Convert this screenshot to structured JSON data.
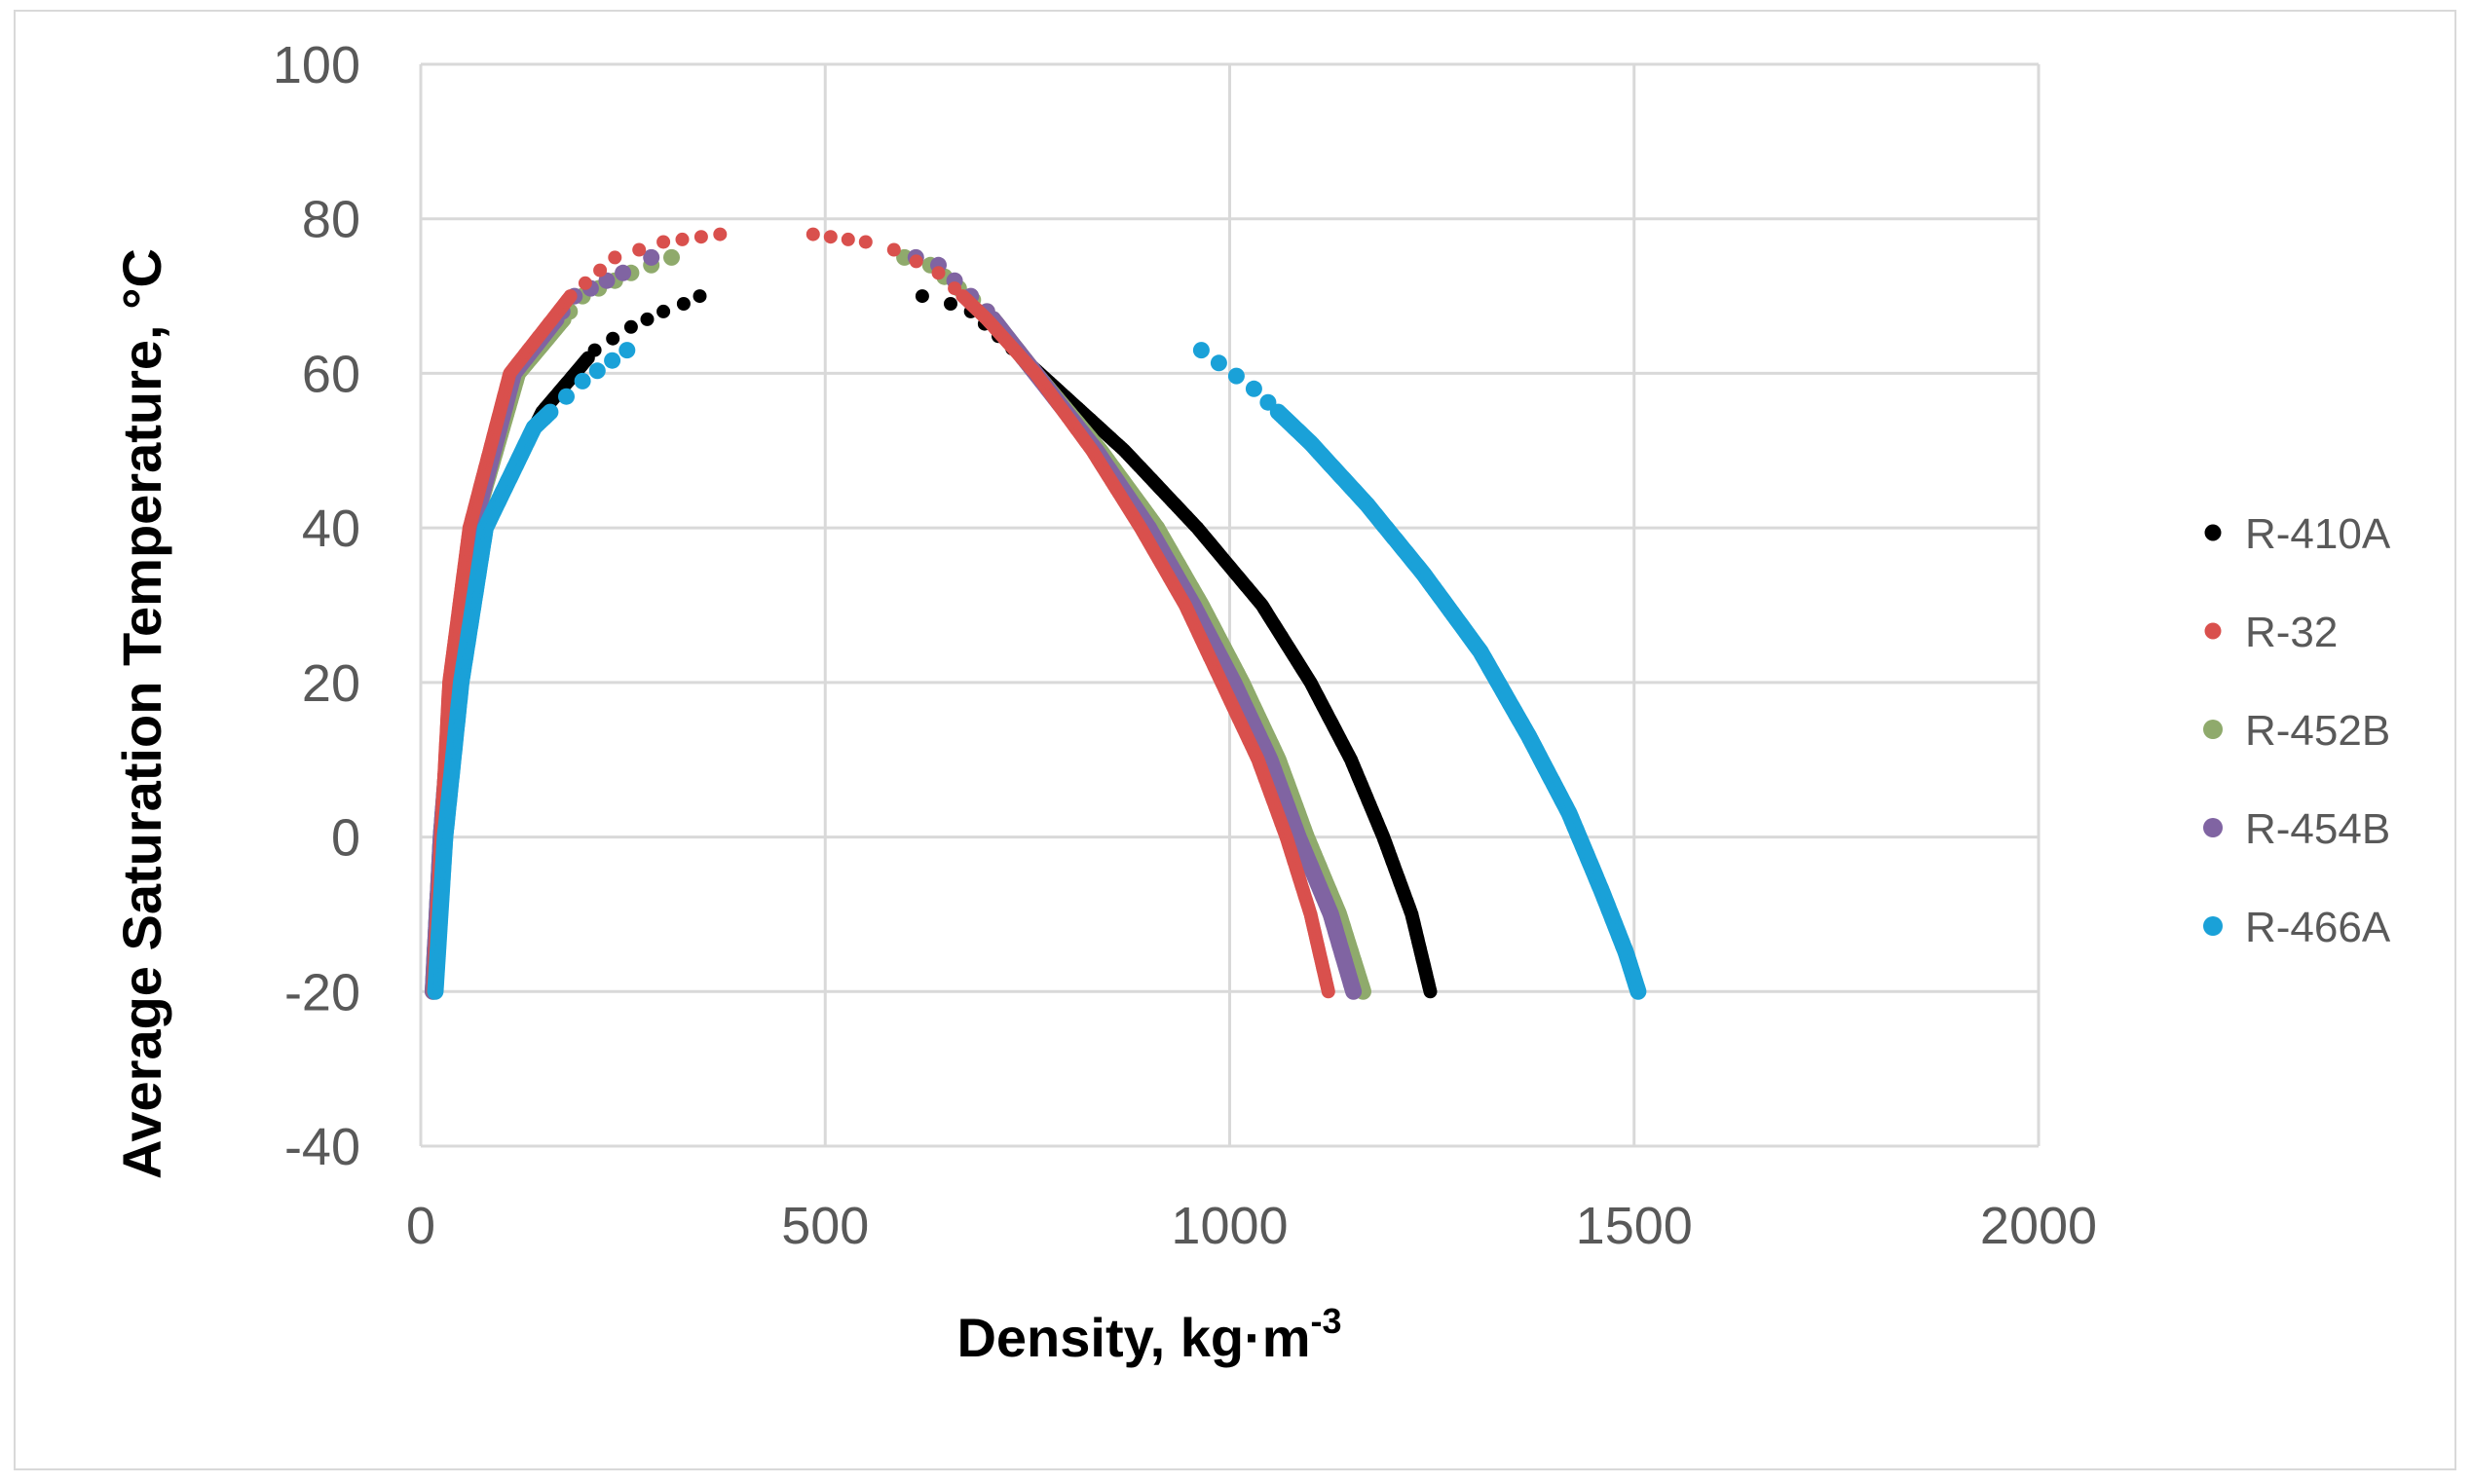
{
  "chart_data": {
    "type": "scatter",
    "title": "",
    "xlabel": "Density, kg·m",
    "xlabel_superscript": "-3",
    "ylabel": "Average Saturation Temperature, °C",
    "xlim": [
      0,
      2000
    ],
    "ylim": [
      -40,
      100
    ],
    "x_ticks": [
      0,
      500,
      1000,
      1500,
      2000
    ],
    "y_ticks": [
      -40,
      -20,
      0,
      20,
      40,
      60,
      80,
      100
    ],
    "x_tick_labels": [
      "0",
      "500",
      "1000",
      "1500",
      "2000"
    ],
    "y_tick_labels": [
      "-40",
      "-20",
      "0",
      "20",
      "40",
      "60",
      "80",
      "100"
    ],
    "grid": true,
    "legend_position": "right",
    "colors": {
      "gridline": "#d9d9d9",
      "frame": "#d9d9d9"
    },
    "series": [
      {
        "name": "R-410A",
        "color": "#000000",
        "marker_size": "small",
        "vapor": {
          "x_min": 15,
          "x_max": 345,
          "t_top": 70
        },
        "liquid": {
          "x_min": 620,
          "x_max": 1248,
          "t_top": 70
        },
        "vapor_points": [
          [
            15,
            -20
          ],
          [
            30,
            0
          ],
          [
            45,
            20
          ],
          [
            80,
            40
          ],
          [
            150,
            55
          ],
          [
            215,
            63
          ],
          [
            260,
            66
          ],
          [
            300,
            68
          ],
          [
            325,
            69
          ],
          [
            345,
            70
          ]
        ],
        "liquid_points": [
          [
            620,
            70
          ],
          [
            655,
            69
          ],
          [
            680,
            68
          ],
          [
            765,
            60
          ],
          [
            870,
            50
          ],
          [
            960,
            40
          ],
          [
            1040,
            30
          ],
          [
            1100,
            20
          ],
          [
            1150,
            10
          ],
          [
            1190,
            0
          ],
          [
            1225,
            -10
          ],
          [
            1248,
            -20
          ]
        ]
      },
      {
        "name": "R-32",
        "color": "#d9504d",
        "marker_size": "small",
        "vapor": {
          "x_min": 15,
          "x_max": 370,
          "t_top": 78
        },
        "liquid": {
          "x_min": 485,
          "x_max": 1122,
          "t_top": 78
        },
        "vapor_points": [
          [
            15,
            -20
          ],
          [
            25,
            0
          ],
          [
            35,
            20
          ],
          [
            60,
            40
          ],
          [
            110,
            60
          ],
          [
            185,
            70
          ],
          [
            240,
            75
          ],
          [
            270,
            76
          ],
          [
            300,
            77
          ],
          [
            370,
            78
          ]
        ],
        "liquid_points": [
          [
            485,
            78
          ],
          [
            550,
            77
          ],
          [
            585,
            76
          ],
          [
            640,
            73
          ],
          [
            700,
            67
          ],
          [
            760,
            60
          ],
          [
            830,
            50
          ],
          [
            890,
            40
          ],
          [
            945,
            30
          ],
          [
            990,
            20
          ],
          [
            1035,
            10
          ],
          [
            1070,
            0
          ],
          [
            1100,
            -10
          ],
          [
            1122,
            -20
          ]
        ]
      },
      {
        "name": "R-452B",
        "color": "#8faa6c",
        "marker_size": "large",
        "vapor": {
          "x_min": 15,
          "x_max": 310,
          "t_top": 75
        },
        "liquid": {
          "x_min": 598,
          "x_max": 1165,
          "t_top": 75
        },
        "vapor_points": [
          [
            15,
            -20
          ],
          [
            25,
            0
          ],
          [
            40,
            20
          ],
          [
            65,
            40
          ],
          [
            120,
            60
          ],
          [
            200,
            70
          ],
          [
            260,
            73
          ],
          [
            310,
            75
          ]
        ],
        "liquid_points": [
          [
            598,
            75
          ],
          [
            630,
            74
          ],
          [
            700,
            68
          ],
          [
            760,
            60
          ],
          [
            840,
            50
          ],
          [
            910,
            40
          ],
          [
            965,
            30
          ],
          [
            1015,
            20
          ],
          [
            1060,
            10
          ],
          [
            1095,
            0
          ],
          [
            1135,
            -10
          ],
          [
            1165,
            -20
          ]
        ]
      },
      {
        "name": "R-454B",
        "color": "#8064a2",
        "marker_size": "large",
        "vapor": {
          "x_min": 15,
          "x_max": 285,
          "t_top": 75
        },
        "liquid": {
          "x_min": 612,
          "x_max": 1153,
          "t_top": 75
        },
        "vapor_points": [
          [
            15,
            -20
          ],
          [
            25,
            0
          ],
          [
            40,
            20
          ],
          [
            65,
            40
          ],
          [
            115,
            60
          ],
          [
            190,
            70
          ],
          [
            250,
            73
          ],
          [
            285,
            75
          ]
        ],
        "liquid_points": [
          [
            612,
            75
          ],
          [
            640,
            74
          ],
          [
            700,
            68
          ],
          [
            760,
            60
          ],
          [
            835,
            50
          ],
          [
            900,
            40
          ],
          [
            955,
            30
          ],
          [
            1005,
            20
          ],
          [
            1050,
            10
          ],
          [
            1085,
            0
          ],
          [
            1125,
            -10
          ],
          [
            1153,
            -20
          ]
        ]
      },
      {
        "name": "R-466A",
        "color": "#1aa1d8",
        "marker_size": "large",
        "vapor": {
          "x_min": 18,
          "x_max": 255,
          "t_top": 63
        },
        "liquid": {
          "x_min": 965,
          "x_max": 1505,
          "t_top": 63
        },
        "vapor_points": [
          [
            18,
            -20
          ],
          [
            30,
            0
          ],
          [
            50,
            20
          ],
          [
            80,
            40
          ],
          [
            140,
            53
          ],
          [
            200,
            59
          ],
          [
            255,
            63
          ]
        ],
        "liquid_points": [
          [
            965,
            63
          ],
          [
            1030,
            58
          ],
          [
            1100,
            51
          ],
          [
            1170,
            43
          ],
          [
            1240,
            34
          ],
          [
            1310,
            24
          ],
          [
            1370,
            13
          ],
          [
            1420,
            3
          ],
          [
            1460,
            -7
          ],
          [
            1490,
            -15
          ],
          [
            1505,
            -20
          ]
        ]
      }
    ]
  }
}
